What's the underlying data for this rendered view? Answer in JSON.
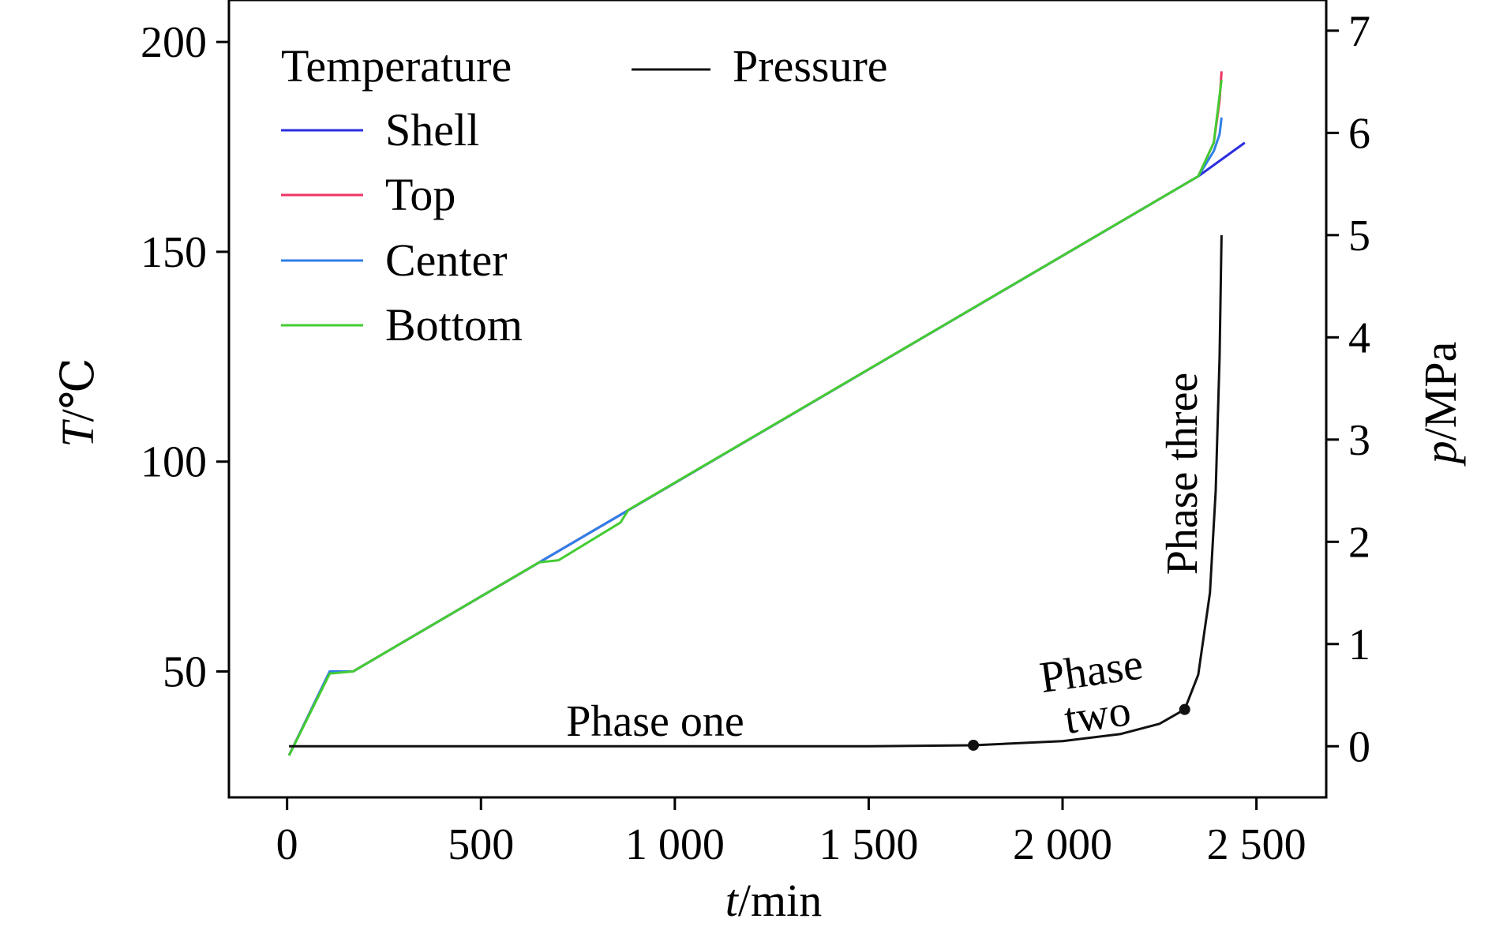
{
  "chart_data": {
    "type": "line",
    "xlabel_var": "t",
    "xlabel_unit": "/min",
    "ylabel_var": "T",
    "ylabel_unit": "/℃",
    "y2label_var": "p",
    "y2label_unit": "/MPa",
    "xlim": [
      -150,
      2680
    ],
    "ylim": [
      20,
      210
    ],
    "y2lim": [
      -0.5,
      7.3
    ],
    "x_ticks": [
      0,
      500,
      1000,
      1500,
      2000,
      2500
    ],
    "x_tick_labels": [
      "0",
      "500",
      "1 000",
      "1 500",
      "2 000",
      "2 500"
    ],
    "y_ticks": [
      50,
      100,
      150,
      200
    ],
    "y_tick_labels": [
      "50",
      "100",
      "150",
      "200"
    ],
    "y2_ticks": [
      0,
      1,
      2,
      3,
      4,
      5,
      6,
      7
    ],
    "y2_tick_labels": [
      "0",
      "1",
      "2",
      "3",
      "4",
      "5",
      "6",
      "7"
    ],
    "legend": {
      "placement": "top-left",
      "group_title": "Temperature",
      "pressure_label": "Pressure"
    },
    "temperature_series": [
      {
        "name": "Shell",
        "color": "#2a2ee0",
        "x": [
          5,
          110,
          170,
          2350,
          2470
        ],
        "y": [
          30,
          50,
          50,
          168,
          176
        ]
      },
      {
        "name": "Top",
        "color": "#ee3366",
        "x": [
          5,
          110,
          170,
          2350,
          2390,
          2405,
          2410
        ],
        "y": [
          30,
          50,
          50,
          168,
          176,
          186,
          193
        ]
      },
      {
        "name": "Center",
        "color": "#2f7fe8",
        "x": [
          5,
          110,
          170,
          2350,
          2390,
          2405,
          2410
        ],
        "y": [
          30,
          50,
          50,
          168,
          174,
          178,
          182
        ]
      },
      {
        "name": "Bottom",
        "color": "#44cc33",
        "x": [
          5,
          110,
          170,
          650,
          700,
          860,
          880,
          2350,
          2390,
          2410
        ],
        "y": [
          30,
          49.5,
          50,
          76,
          76.5,
          85.5,
          88.5,
          168,
          176,
          191
        ]
      }
    ],
    "pressure_series": {
      "name": "Pressure",
      "color": "#111111",
      "x": [
        5,
        1500,
        1770,
        2000,
        2150,
        2250,
        2315,
        2350,
        2380,
        2395,
        2405,
        2410
      ],
      "y": [
        0,
        0,
        0.01,
        0.05,
        0.12,
        0.22,
        0.36,
        0.7,
        1.5,
        2.5,
        3.8,
        5.0
      ]
    },
    "phase_markers": {
      "x": [
        1770,
        2315
      ],
      "y": [
        0.01,
        0.36
      ]
    },
    "annotations": {
      "phase_one": "Phase one",
      "phase_two_line1": "Phase",
      "phase_two_line2": "two",
      "phase_three": "Phase three"
    }
  }
}
